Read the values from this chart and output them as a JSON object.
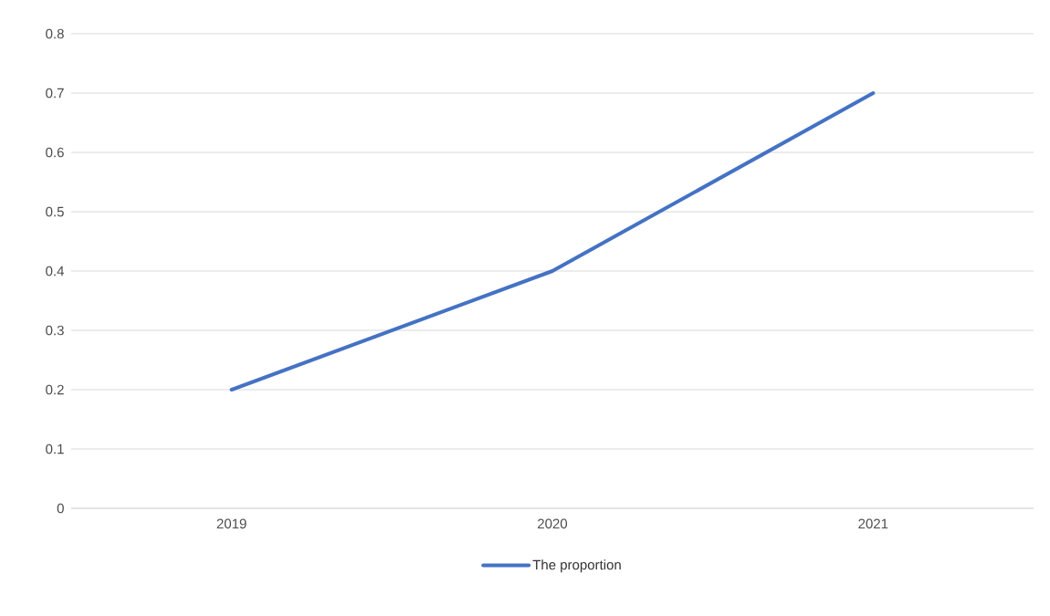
{
  "chart_data": {
    "type": "line",
    "categories": [
      "2019",
      "2020",
      "2021"
    ],
    "series": [
      {
        "name": "The proportion",
        "color": "#4472c4",
        "values": [
          0.2,
          0.4,
          0.7
        ]
      }
    ],
    "ylim": [
      0,
      0.8
    ],
    "yticks": [
      0,
      0.1,
      0.2,
      0.3,
      0.4,
      0.5,
      0.6,
      0.7,
      0.8
    ],
    "grid": "y",
    "legend": "bottom",
    "marker": "none",
    "line_style": "solid"
  }
}
